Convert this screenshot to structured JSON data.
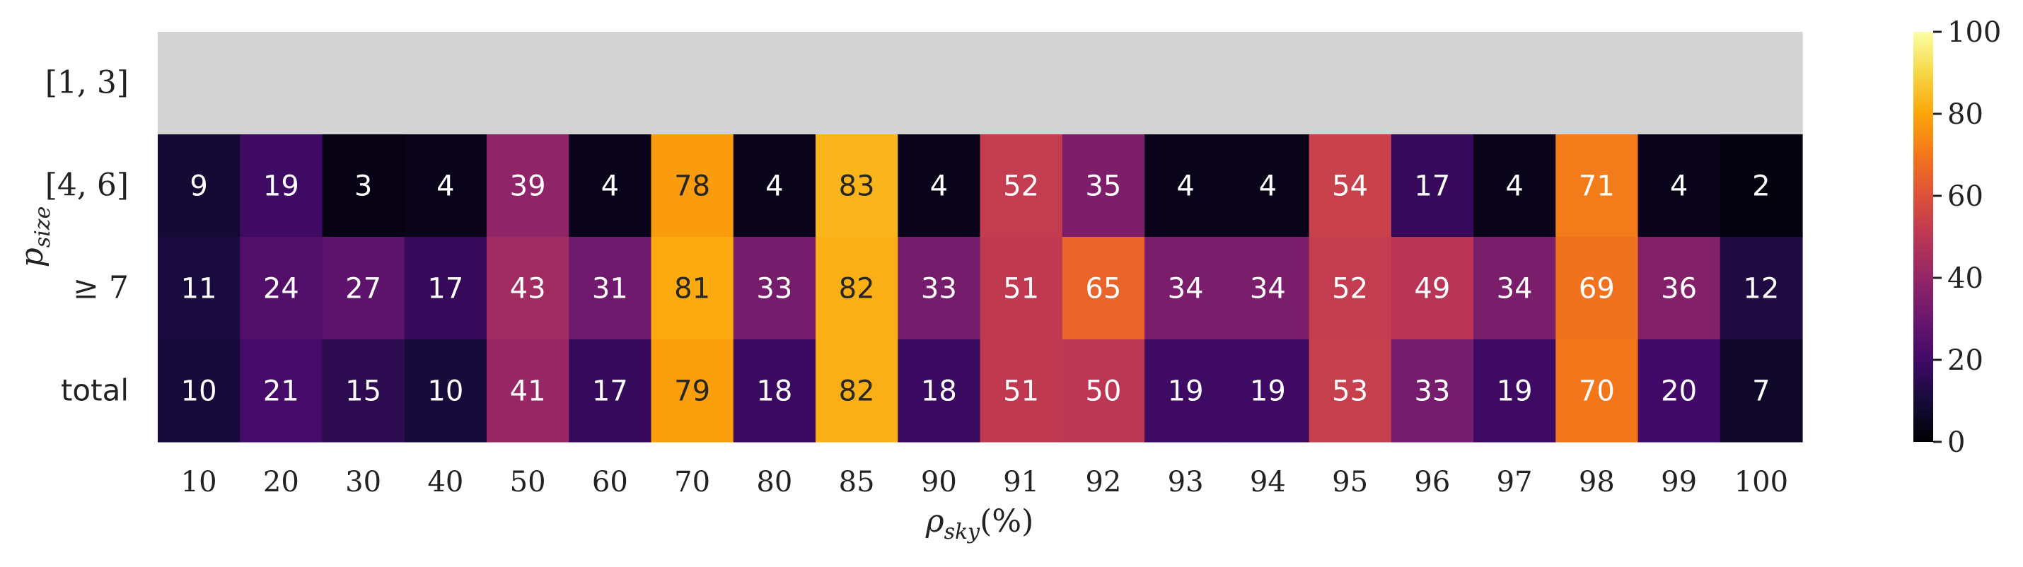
{
  "chart_data": {
    "type": "heatmap",
    "x_categories": [
      "10",
      "20",
      "30",
      "40",
      "50",
      "60",
      "70",
      "80",
      "85",
      "90",
      "91",
      "92",
      "93",
      "94",
      "95",
      "96",
      "97",
      "98",
      "99",
      "100"
    ],
    "y_categories": [
      "[1, 3]",
      "[4, 6]",
      "≥ 7",
      "total"
    ],
    "values": [
      [
        null,
        null,
        null,
        null,
        null,
        null,
        null,
        null,
        null,
        null,
        null,
        null,
        null,
        null,
        null,
        null,
        null,
        null,
        null,
        null
      ],
      [
        9,
        19,
        3,
        4,
        39,
        4,
        78,
        4,
        83,
        4,
        52,
        35,
        4,
        4,
        54,
        17,
        4,
        71,
        4,
        2
      ],
      [
        11,
        24,
        27,
        17,
        43,
        31,
        81,
        33,
        82,
        33,
        51,
        65,
        34,
        34,
        52,
        49,
        34,
        69,
        36,
        12
      ],
      [
        10,
        21,
        15,
        10,
        41,
        17,
        79,
        18,
        82,
        18,
        51,
        50,
        19,
        19,
        53,
        33,
        19,
        70,
        20,
        7
      ]
    ],
    "missing_color": "#d3d3d3",
    "colormap": "inferno",
    "vmin": 0,
    "vmax": 100,
    "colorbar_ticks": [
      0,
      20,
      40,
      60,
      80,
      100
    ],
    "xlabel_main": "ρ",
    "xlabel_sub": "sky",
    "xlabel_suffix": "(%)",
    "ylabel_main": "p",
    "ylabel_sub": "size"
  }
}
